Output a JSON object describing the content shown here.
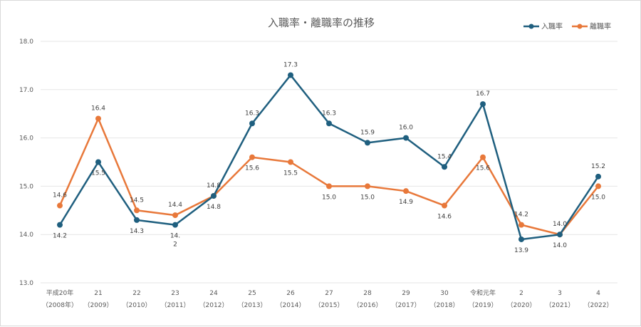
{
  "chart_data": {
    "type": "line",
    "title": "入職率・離職率の推移",
    "xlabel": "",
    "ylabel": "",
    "ylim": [
      13.0,
      18.0
    ],
    "yticks": [
      "13.0",
      "14.0",
      "15.0",
      "16.0",
      "17.0",
      "18.0"
    ],
    "grid": true,
    "legend_position": "top-right",
    "categories": [
      {
        "top": "平成20年",
        "bottom": "（2008年）"
      },
      {
        "top": "21",
        "bottom": "（2009）"
      },
      {
        "top": "22",
        "bottom": "（2010）"
      },
      {
        "top": "23",
        "bottom": "（2011）"
      },
      {
        "top": "24",
        "bottom": "（2012）"
      },
      {
        "top": "25",
        "bottom": "（2013）"
      },
      {
        "top": "26",
        "bottom": "（2014）"
      },
      {
        "top": "27",
        "bottom": "（2015）"
      },
      {
        "top": "28",
        "bottom": "（2016）"
      },
      {
        "top": "29",
        "bottom": "（2017）"
      },
      {
        "top": "30",
        "bottom": "（2018）"
      },
      {
        "top": "令和元年",
        "bottom": "（2019）"
      },
      {
        "top": "2",
        "bottom": "（2020）"
      },
      {
        "top": "3",
        "bottom": "（2021）"
      },
      {
        "top": "4",
        "bottom": "（2022）"
      }
    ],
    "series": [
      {
        "name": "入職率",
        "color": "#1f5f7f",
        "values": [
          14.2,
          15.5,
          14.3,
          14.2,
          14.8,
          16.3,
          17.3,
          16.3,
          15.9,
          16.0,
          15.4,
          16.7,
          13.9,
          14.0,
          15.2
        ],
        "labels": [
          "14.2",
          "15.5",
          "14.3",
          "14.\n2",
          "14.8",
          "16.3",
          "17.3",
          "16.3",
          "15.9",
          "16.0",
          "15.4",
          "16.7",
          "13.9",
          "14.0",
          "15.2"
        ]
      },
      {
        "name": "離職率",
        "color": "#e8783a",
        "values": [
          14.6,
          16.4,
          14.5,
          14.4,
          14.8,
          15.6,
          15.5,
          15.0,
          15.0,
          14.9,
          14.6,
          15.6,
          14.2,
          14.0,
          15.0
        ],
        "labels": [
          "14.6",
          "16.4",
          "14.5",
          "14.4",
          "14.8",
          "15.6",
          "15.5",
          "15.0",
          "15.0",
          "14.9",
          "14.6",
          "15.6",
          "14.2",
          "14.0",
          "15.0"
        ]
      }
    ]
  }
}
